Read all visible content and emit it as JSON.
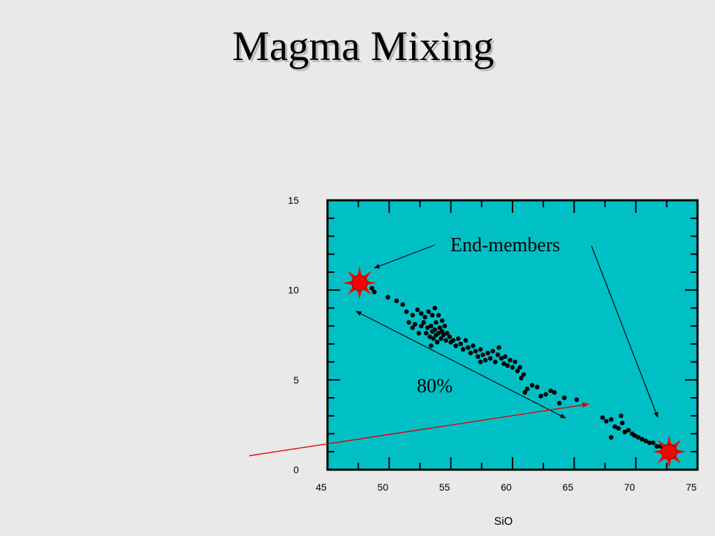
{
  "slide": {
    "title": "Magma Mixing"
  },
  "colors": {
    "plot_bg": "#00c0c6",
    "point": "#000000",
    "endmember": "#ff0000",
    "highlight_line": "#e00000"
  },
  "chart_data": {
    "type": "scatter",
    "title": "Magma Mixing",
    "xlabel": "SiO",
    "ylabel": "",
    "xlim": [
      45,
      75
    ],
    "ylim": [
      0,
      15
    ],
    "xticks": [
      45,
      50,
      55,
      60,
      65,
      70,
      75
    ],
    "yticks": [
      0,
      5,
      10,
      15
    ],
    "grid": false,
    "series": [
      {
        "points": [
          [
            48.6,
            10.1
          ],
          [
            48.8,
            9.9
          ],
          [
            49.9,
            9.6
          ],
          [
            50.6,
            9.4
          ],
          [
            51.1,
            9.2
          ],
          [
            51.4,
            8.8
          ],
          [
            51.9,
            8.6
          ],
          [
            52.3,
            8.9
          ],
          [
            52.6,
            8.7
          ],
          [
            52.9,
            8.5
          ],
          [
            53.2,
            8.8
          ],
          [
            53.5,
            8.6
          ],
          [
            53.7,
            9.0
          ],
          [
            54.0,
            8.6
          ],
          [
            51.6,
            8.2
          ],
          [
            51.9,
            7.9
          ],
          [
            52.1,
            8.1
          ],
          [
            52.4,
            7.6
          ],
          [
            52.6,
            8.0
          ],
          [
            52.8,
            8.2
          ],
          [
            53.0,
            7.6
          ],
          [
            53.1,
            7.9
          ],
          [
            53.3,
            7.4
          ],
          [
            53.4,
            8.0
          ],
          [
            53.5,
            7.7
          ],
          [
            53.6,
            7.3
          ],
          [
            53.7,
            7.8
          ],
          [
            53.8,
            7.5
          ],
          [
            53.9,
            7.1
          ],
          [
            54.0,
            7.6
          ],
          [
            54.1,
            7.9
          ],
          [
            54.2,
            7.3
          ],
          [
            54.3,
            7.7
          ],
          [
            54.4,
            7.5
          ],
          [
            54.5,
            8.0
          ],
          [
            54.6,
            7.2
          ],
          [
            54.7,
            7.6
          ],
          [
            54.9,
            7.4
          ],
          [
            55.0,
            7.1
          ],
          [
            54.3,
            8.3
          ],
          [
            53.8,
            8.2
          ],
          [
            53.4,
            6.9
          ],
          [
            55.2,
            7.2
          ],
          [
            55.4,
            6.9
          ],
          [
            55.6,
            7.3
          ],
          [
            55.8,
            7.0
          ],
          [
            56.0,
            6.7
          ],
          [
            56.2,
            7.2
          ],
          [
            56.4,
            6.8
          ],
          [
            56.6,
            6.5
          ],
          [
            56.8,
            6.9
          ],
          [
            57.0,
            6.6
          ],
          [
            57.2,
            6.3
          ],
          [
            57.4,
            6.7
          ],
          [
            57.6,
            6.4
          ],
          [
            57.8,
            6.1
          ],
          [
            58.0,
            6.5
          ],
          [
            58.2,
            6.2
          ],
          [
            58.4,
            6.6
          ],
          [
            58.6,
            6.0
          ],
          [
            58.8,
            6.4
          ],
          [
            58.9,
            6.8
          ],
          [
            59.1,
            6.2
          ],
          [
            59.3,
            5.9
          ],
          [
            59.4,
            6.3
          ],
          [
            59.6,
            5.8
          ],
          [
            59.8,
            6.1
          ],
          [
            60.0,
            5.7
          ],
          [
            60.2,
            6.0
          ],
          [
            60.4,
            5.5
          ],
          [
            60.6,
            5.7
          ],
          [
            60.9,
            5.3
          ],
          [
            61.0,
            4.3
          ],
          [
            61.2,
            4.5
          ],
          [
            61.6,
            4.7
          ],
          [
            62.0,
            4.6
          ],
          [
            62.3,
            4.1
          ],
          [
            62.7,
            4.2
          ],
          [
            63.1,
            4.4
          ],
          [
            63.4,
            4.3
          ],
          [
            63.8,
            3.7
          ],
          [
            64.2,
            4.0
          ],
          [
            65.2,
            3.9
          ],
          [
            67.3,
            2.9
          ],
          [
            67.6,
            2.7
          ],
          [
            68.0,
            2.8
          ],
          [
            68.3,
            2.4
          ],
          [
            68.6,
            2.3
          ],
          [
            68.9,
            2.6
          ],
          [
            69.1,
            2.1
          ],
          [
            69.4,
            2.2
          ],
          [
            69.7,
            2.0
          ],
          [
            69.9,
            1.9
          ],
          [
            70.2,
            1.8
          ],
          [
            70.5,
            1.7
          ],
          [
            70.8,
            1.6
          ],
          [
            71.1,
            1.5
          ],
          [
            71.4,
            1.5
          ],
          [
            71.7,
            1.3
          ],
          [
            72.0,
            1.3
          ],
          [
            72.3,
            1.2
          ],
          [
            72.6,
            1.1
          ],
          [
            68.0,
            1.8
          ],
          [
            68.8,
            3.0
          ],
          [
            60.7,
            5.1
          ],
          [
            57.4,
            6.0
          ]
        ]
      }
    ],
    "endmembers": [
      [
        47.6,
        10.4
      ],
      [
        72.7,
        1.0
      ]
    ],
    "annotations": [
      {
        "text": "End-members"
      },
      {
        "text": "80%"
      }
    ]
  }
}
